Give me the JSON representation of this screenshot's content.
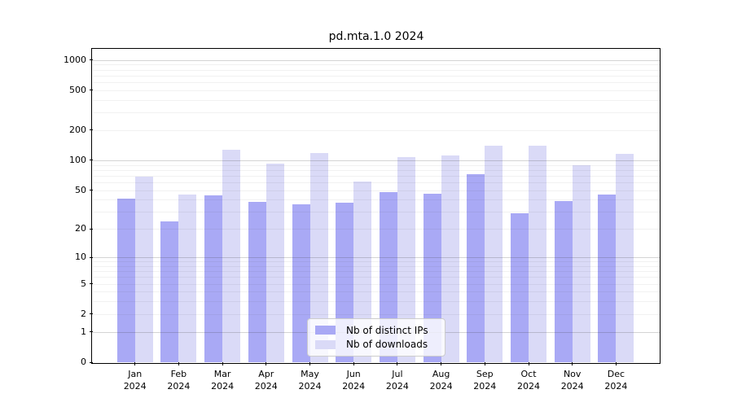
{
  "chart_data": {
    "type": "bar",
    "title": "pd.mta.1.0 2024",
    "categories": [
      "Jan",
      "Feb",
      "Mar",
      "Apr",
      "May",
      "Jun",
      "Jul",
      "Aug",
      "Sep",
      "Oct",
      "Nov",
      "Dec"
    ],
    "category_year": "2024",
    "series": [
      {
        "name": "Nb of distinct IPs",
        "color": "#a9a9f5",
        "values": [
          41,
          24,
          44,
          38,
          36,
          37,
          48,
          46,
          73,
          29,
          39,
          45
        ]
      },
      {
        "name": "Nb of downloads",
        "color": "#dadaf7",
        "values": [
          68,
          45,
          127,
          93,
          118,
          61,
          108,
          112,
          139,
          141,
          89,
          116
        ]
      }
    ],
    "yticks": [
      0,
      1,
      2,
      5,
      10,
      20,
      50,
      100,
      200,
      500,
      1000
    ],
    "ylim": [
      0,
      1000
    ],
    "yscale": "symlog",
    "grid": "on",
    "legend_position": "lower center",
    "colors": {
      "background": "#ffffff",
      "axis": "#000000",
      "grid_major": "#d4d4d4",
      "grid_minor": "#f0f0f0",
      "legend_border": "#cccccc"
    }
  }
}
